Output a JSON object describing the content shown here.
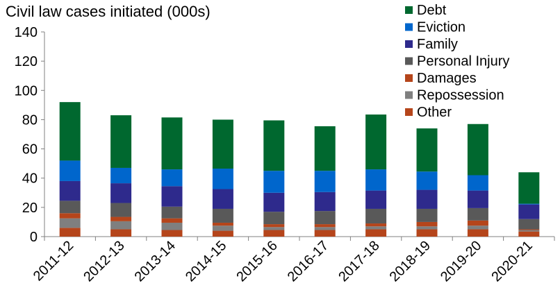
{
  "chart_data": {
    "type": "bar",
    "stacked": true,
    "title": "Civil law cases initiated (000s)",
    "xlabel": "",
    "ylabel": "",
    "ylim": [
      0,
      140
    ],
    "yticks": [
      0,
      20,
      40,
      60,
      80,
      100,
      120,
      140
    ],
    "grid": false,
    "legend_position": "top-right",
    "categories": [
      "2011-12",
      "2012-13",
      "2013-14",
      "2014-15",
      "2015-16",
      "2016-17",
      "2017-18",
      "2018-19",
      "2019-20",
      "2020-21"
    ],
    "series": [
      {
        "name": "Other",
        "color": "#b5451b",
        "values": [
          6,
          5,
          4.5,
          4,
          4.5,
          4.5,
          5,
          5,
          5,
          3.5
        ]
      },
      {
        "name": "Repossession",
        "color": "#7f7f7f",
        "values": [
          6.5,
          5.5,
          5,
          3.5,
          2,
          2,
          2,
          2,
          2.5,
          1
        ]
      },
      {
        "name": "Damages",
        "color": "#b5451b",
        "values": [
          3.5,
          3,
          3,
          2,
          2,
          2,
          2,
          3,
          3.5,
          0.5
        ]
      },
      {
        "name": "Personal Injury",
        "color": "#595959",
        "values": [
          8.5,
          9.5,
          8,
          9.5,
          8.5,
          9,
          10,
          9,
          8.5,
          7
        ]
      },
      {
        "name": "Family",
        "color": "#2e2a8c",
        "values": [
          13.5,
          13.5,
          14,
          13.5,
          13,
          13,
          12.5,
          13,
          12,
          10
        ]
      },
      {
        "name": "Eviction",
        "color": "#0066cc",
        "values": [
          14,
          10.5,
          11.5,
          14,
          15,
          14.5,
          14.5,
          12.5,
          10.5,
          0.5
        ]
      },
      {
        "name": "Debt",
        "color": "#00682f",
        "values": [
          40,
          36,
          35.5,
          33.5,
          34.5,
          30.5,
          37.5,
          29.5,
          35,
          21.5
        ]
      }
    ]
  }
}
